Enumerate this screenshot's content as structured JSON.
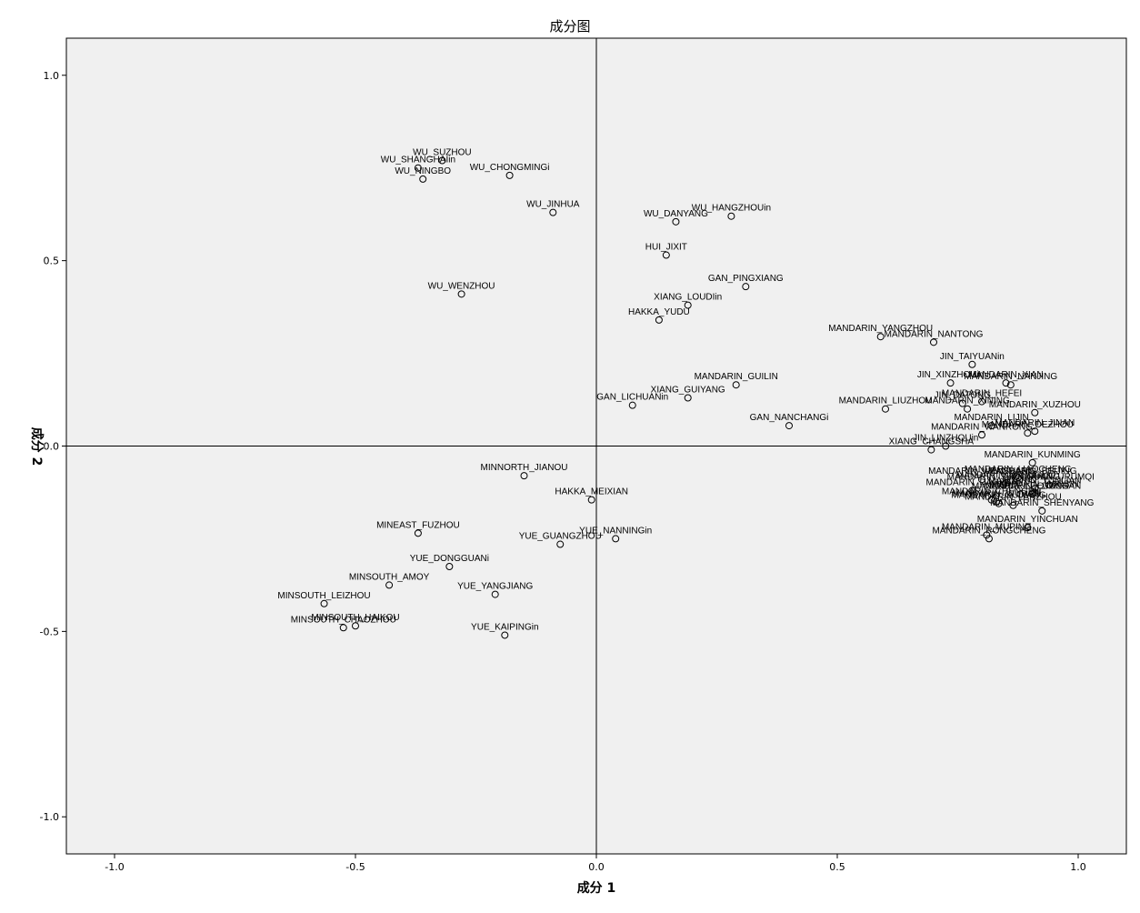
{
  "chart_data": {
    "type": "scatter",
    "title": "成分图",
    "xlabel": "成分 1",
    "ylabel": "成分 2",
    "xlim": [
      -1.1,
      1.1
    ],
    "ylim": [
      -1.1,
      1.1
    ],
    "x_ticks": [
      "-1.0",
      "-0.5",
      "0.0",
      "0.5",
      "1.0"
    ],
    "y_ticks": [
      "1.0",
      "0.5",
      "0.0",
      "-0.5",
      "-1.0"
    ],
    "reference_lines": {
      "x": 0,
      "y": 0
    },
    "grid": false,
    "marker": "open-circle",
    "colors": {
      "plot_background": "#f0f0f0",
      "marker": "#000000",
      "frame": "#000000"
    },
    "points": [
      {
        "label": "WU_SUZHOU",
        "x": -0.32,
        "y": 0.77
      },
      {
        "label": "WU_SHANGHAIin",
        "x": -0.37,
        "y": 0.75
      },
      {
        "label": "WU_NINGBO",
        "x": -0.36,
        "y": 0.72
      },
      {
        "label": "WU_CHONGMINGi",
        "x": -0.18,
        "y": 0.73
      },
      {
        "label": "WU_JINHUA",
        "x": -0.09,
        "y": 0.63
      },
      {
        "label": "WU_WENZHOU",
        "x": -0.28,
        "y": 0.41
      },
      {
        "label": "WU_HANGZHOUin",
        "x": 0.28,
        "y": 0.62
      },
      {
        "label": "WU_DANYANG",
        "x": 0.165,
        "y": 0.605
      },
      {
        "label": "HUI_JIXIT",
        "x": 0.145,
        "y": 0.515
      },
      {
        "label": "GAN_PINGXIANG",
        "x": 0.31,
        "y": 0.43
      },
      {
        "label": "XIANG_LOUDIin",
        "x": 0.19,
        "y": 0.38
      },
      {
        "label": "HAKKA_YUDU",
        "x": 0.13,
        "y": 0.34
      },
      {
        "label": "GAN_LICHUANin",
        "x": 0.075,
        "y": 0.11
      },
      {
        "label": "XIANG_GUIYANG",
        "x": 0.19,
        "y": 0.13
      },
      {
        "label": "MANDARIN_GUILIN",
        "x": 0.29,
        "y": 0.165
      },
      {
        "label": "GAN_NANCHANGi",
        "x": 0.4,
        "y": 0.055
      },
      {
        "label": "MANDARIN_YANGZHOU",
        "x": 0.59,
        "y": 0.295
      },
      {
        "label": "MANDARIN_NANTONG",
        "x": 0.7,
        "y": 0.28
      },
      {
        "label": "JIN_TAIYUANin",
        "x": 0.78,
        "y": 0.22
      },
      {
        "label": "MANDARIN_XIAN",
        "x": 0.85,
        "y": 0.17
      },
      {
        "label": "MANDARIN_NANJING",
        "x": 0.86,
        "y": 0.165
      },
      {
        "label": "JIN_XINZHOUin",
        "x": 0.735,
        "y": 0.17
      },
      {
        "label": "MANDARIN_HEFEI",
        "x": 0.8,
        "y": 0.12
      },
      {
        "label": "MANDARIN_LIUZHOU",
        "x": 0.6,
        "y": 0.1
      },
      {
        "label": "JIN_DATONG",
        "x": 0.76,
        "y": 0.115
      },
      {
        "label": "MANDARIN_XUZHOU",
        "x": 0.91,
        "y": 0.09
      },
      {
        "label": "MANDARIN_XINING",
        "x": 0.77,
        "y": 0.1
      },
      {
        "label": "MANDARIN_LIJIN",
        "x": 0.82,
        "y": 0.055
      },
      {
        "label": "MANDARIN_JINAN",
        "x": 0.91,
        "y": 0.04
      },
      {
        "label": "MANDARIN_WANRONG",
        "x": 0.8,
        "y": 0.03
      },
      {
        "label": "MANDARIN_DEZHOU",
        "x": 0.895,
        "y": 0.035
      },
      {
        "label": "XIANG_CHANGSHA",
        "x": 0.695,
        "y": -0.01
      },
      {
        "label": "JIN_LINZHOUin",
        "x": 0.725,
        "y": 0.0
      },
      {
        "label": "MANDARIN_KUNMING",
        "x": 0.905,
        "y": -0.045
      },
      {
        "label": "MANDARIN_YANGGUO",
        "x": 0.85,
        "y": -0.1
      },
      {
        "label": "MANDARIN_WENSHANG",
        "x": 0.8,
        "y": -0.09
      },
      {
        "label": "MANDARIN_LIAOCHENG",
        "x": 0.875,
        "y": -0.085
      },
      {
        "label": "MANDARIN_BEIJING",
        "x": 0.905,
        "y": -0.09
      },
      {
        "label": "MANDARIN_SHOUGUANG",
        "x": 0.845,
        "y": -0.105
      },
      {
        "label": "MANDARIN_DAGUAN",
        "x": 0.78,
        "y": -0.12
      },
      {
        "label": "MANDARIN_LUOYANG",
        "x": 0.88,
        "y": -0.13
      },
      {
        "label": "MANDARIN_URUMQI",
        "x": 0.94,
        "y": -0.105
      },
      {
        "label": "MANDARIN_WUHAN",
        "x": 0.83,
        "y": -0.15
      },
      {
        "label": "MANDARIN_CHENGDU",
        "x": 0.82,
        "y": -0.145
      },
      {
        "label": "MANDARIN_LANZHOU",
        "x": 0.865,
        "y": -0.16
      },
      {
        "label": "MANDARIN_GUIYANG",
        "x": 0.835,
        "y": -0.155
      },
      {
        "label": "MANDARIN_LUOSHAN",
        "x": 0.905,
        "y": -0.13
      },
      {
        "label": "MANDARIN_SHENYANG",
        "x": 0.925,
        "y": -0.175
      },
      {
        "label": "MANDARIN_YINCHUAN",
        "x": 0.895,
        "y": -0.22
      },
      {
        "label": "MANDARIN_MUPING",
        "x": 0.81,
        "y": -0.24
      },
      {
        "label": "MANDARIN_RONGCHENG",
        "x": 0.815,
        "y": -0.25
      },
      {
        "label": "MANDARIN_YUNLIAN",
        "x": 0.91,
        "y": -0.115
      },
      {
        "label": "MANDARIN_HARBIN",
        "x": 0.91,
        "y": -0.125
      },
      {
        "label": "MINNORTH_JIANOU",
        "x": -0.15,
        "y": -0.08
      },
      {
        "label": "HAKKA_MEIXIAN",
        "x": -0.01,
        "y": -0.145
      },
      {
        "label": "MINEAST_FUZHOU",
        "x": -0.37,
        "y": -0.235
      },
      {
        "label": "YUE_GUANGZHOU",
        "x": -0.075,
        "y": -0.265
      },
      {
        "label": "YUE_NANNINGin",
        "x": 0.04,
        "y": -0.25
      },
      {
        "label": "YUE_DONGGUANi",
        "x": -0.305,
        "y": -0.325
      },
      {
        "label": "MINSOUTH_AMOY",
        "x": -0.43,
        "y": -0.375
      },
      {
        "label": "YUE_YANGJIANG",
        "x": -0.21,
        "y": -0.4
      },
      {
        "label": "MINSOUTH_LEIZHOU",
        "x": -0.565,
        "y": -0.425
      },
      {
        "label": "MINSOUTH_HAIKOU",
        "x": -0.5,
        "y": -0.485
      },
      {
        "label": "MINSOUTH_CHAOZHOU",
        "x": -0.525,
        "y": -0.49
      },
      {
        "label": "YUE_KAIPINGin",
        "x": -0.19,
        "y": -0.51
      }
    ]
  }
}
